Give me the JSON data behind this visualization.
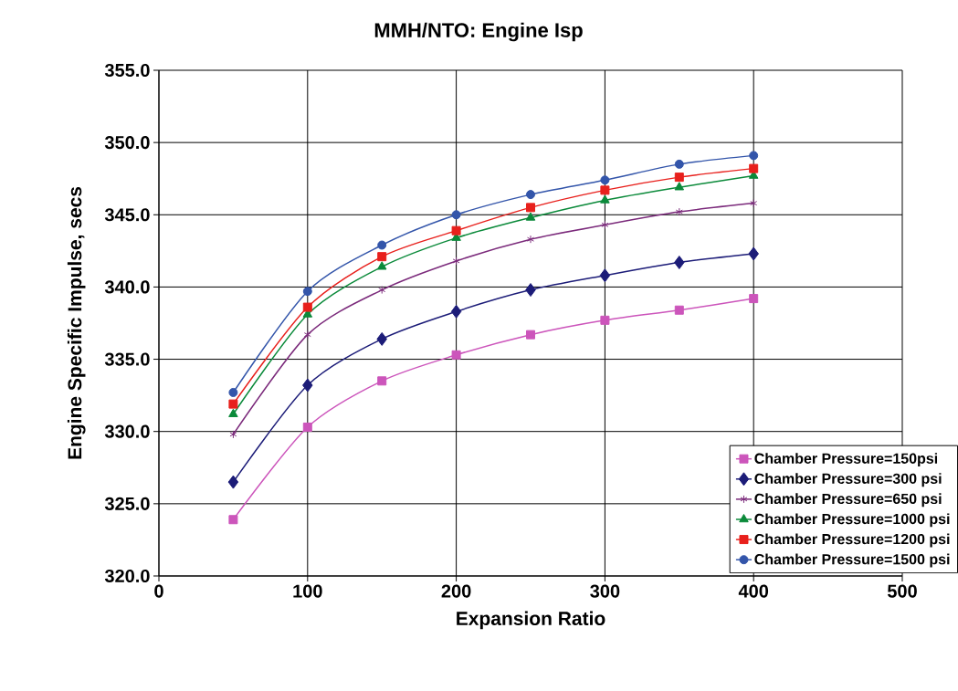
{
  "chart_data": {
    "type": "line",
    "title": "MMH/NTO: Engine Isp",
    "xlabel": "Expansion Ratio",
    "ylabel": "Engine Specific Impulse, secs",
    "x": [
      50,
      100,
      150,
      200,
      250,
      300,
      350,
      400
    ],
    "series": [
      {
        "name": "Chamber Pressure=150psi",
        "color": "#cc55bb",
        "marker": "square",
        "values": [
          323.9,
          330.3,
          333.5,
          335.3,
          336.7,
          337.7,
          338.4,
          339.2
        ]
      },
      {
        "name": "Chamber Pressure=300 psi",
        "color": "#1c1c78",
        "marker": "diamond",
        "values": [
          326.5,
          333.2,
          336.4,
          338.3,
          339.8,
          340.8,
          341.7,
          342.3
        ]
      },
      {
        "name": "Chamber Pressure=650 psi",
        "color": "#7b2a7b",
        "marker": "cross",
        "values": [
          329.8,
          336.7,
          339.8,
          341.8,
          343.3,
          344.3,
          345.2,
          345.8
        ]
      },
      {
        "name": "Chamber Pressure=1000 psi",
        "color": "#0b8a3a",
        "marker": "triangle",
        "values": [
          331.2,
          338.1,
          341.4,
          343.4,
          344.8,
          346.0,
          346.9,
          347.7
        ]
      },
      {
        "name": "Chamber Pressure=1200 psi",
        "color": "#e8201c",
        "marker": "square",
        "values": [
          331.9,
          338.6,
          342.1,
          343.9,
          345.5,
          346.7,
          347.6,
          348.2
        ]
      },
      {
        "name": "Chamber Pressure=1500 psi",
        "color": "#3355aa",
        "marker": "circle",
        "values": [
          332.7,
          339.7,
          342.9,
          345.0,
          346.4,
          347.4,
          348.5,
          349.1
        ]
      }
    ],
    "xlim": [
      0,
      500
    ],
    "xticks": [
      0,
      100,
      200,
      300,
      400,
      500
    ],
    "ylim": [
      320,
      355
    ],
    "yticks": [
      {
        "value": 320,
        "label": "320.0"
      },
      {
        "value": 325,
        "label": "325.0"
      },
      {
        "value": 330,
        "label": "330.0"
      },
      {
        "value": 335,
        "label": "335.0"
      },
      {
        "value": 340,
        "label": "340.0"
      },
      {
        "value": 345,
        "label": "345.0"
      },
      {
        "value": 350,
        "label": "350.0"
      },
      {
        "value": 355,
        "label": "355.0"
      }
    ],
    "grid": true,
    "legend": "bottom right",
    "line_style": "solid"
  }
}
